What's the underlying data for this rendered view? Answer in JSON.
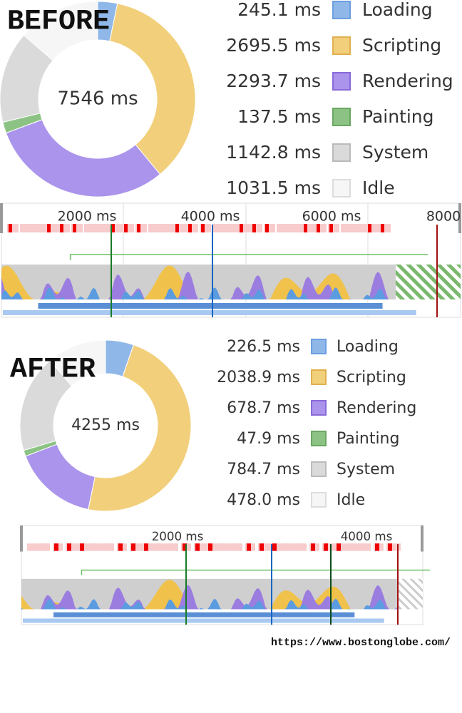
{
  "before": {
    "heading": "BEFORE",
    "total": "7546 ms",
    "legend": [
      {
        "value": 245.1,
        "label": "245.1 ms",
        "name": "Loading",
        "color": "#8fb7e8"
      },
      {
        "value": 2695.5,
        "label": "2695.5 ms",
        "name": "Scripting",
        "color": "#f2cf7a"
      },
      {
        "value": 2293.7,
        "label": "2293.7 ms",
        "name": "Rendering",
        "color": "#ab94ec"
      },
      {
        "value": 137.5,
        "label": "137.5 ms",
        "name": "Painting",
        "color": "#8cc384"
      },
      {
        "value": 1142.8,
        "label": "1142.8 ms",
        "name": "System",
        "color": "#dadada"
      },
      {
        "value": 1031.5,
        "label": "1031.5 ms",
        "name": "Idle",
        "color": "#f6f6f6"
      }
    ],
    "timeline_ticks": [
      "2000 ms",
      "4000 ms",
      "6000 ms",
      "8000"
    ]
  },
  "after": {
    "heading": "AFTER",
    "total": "4255 ms",
    "legend": [
      {
        "value": 226.5,
        "label": "226.5 ms",
        "name": "Loading",
        "color": "#8fb7e8"
      },
      {
        "value": 2038.9,
        "label": "2038.9 ms",
        "name": "Scripting",
        "color": "#f2cf7a"
      },
      {
        "value": 678.7,
        "label": "678.7 ms",
        "name": "Rendering",
        "color": "#ab94ec"
      },
      {
        "value": 47.9,
        "label": "47.9 ms",
        "name": "Painting",
        "color": "#8cc384"
      },
      {
        "value": 784.7,
        "label": "784.7 ms",
        "name": "System",
        "color": "#dadada"
      },
      {
        "value": 478.0,
        "label": "478.0 ms",
        "name": "Idle",
        "color": "#f6f6f6"
      }
    ],
    "timeline_ticks": [
      "2000 ms",
      "4000 ms"
    ]
  },
  "url": "https://www.bostonglobe.com/"
}
